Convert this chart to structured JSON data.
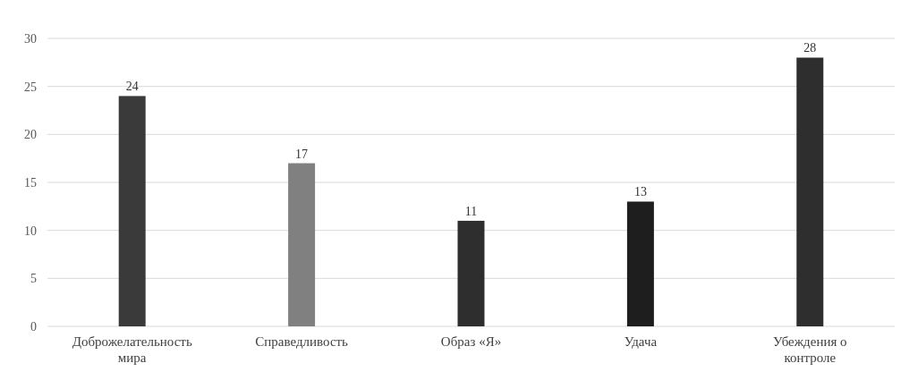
{
  "chart_data": {
    "type": "bar",
    "categories": [
      "Доброжелательность мира",
      "Справедливость",
      "Образ «Я»",
      "Удача",
      "Убеждения о контроле"
    ],
    "values": [
      24,
      17,
      11,
      13,
      28
    ],
    "colors": [
      "#3a3a3a",
      "#808080",
      "#2e2e2e",
      "#1e1e1e",
      "#2e2e2e"
    ],
    "ylim": [
      0,
      30
    ],
    "yticks": [
      0,
      5,
      10,
      15,
      20,
      25,
      30
    ],
    "grid": "y",
    "data_labels": true
  }
}
